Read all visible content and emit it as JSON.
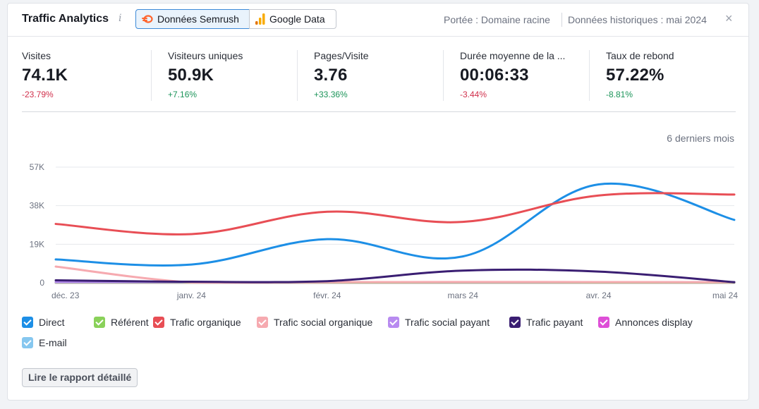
{
  "header": {
    "title": "Traffic Analytics",
    "info_symbol": "i",
    "source_tabs": [
      {
        "label": "Données Semrush",
        "icon": "semrush-flame-icon",
        "active": true
      },
      {
        "label": "Google Data",
        "icon": "google-analytics-bars-icon",
        "active": false
      }
    ],
    "scope": "Portée : Domaine racine",
    "history": "Données historiques : mai 2024",
    "close_symbol": "×"
  },
  "metrics": [
    {
      "label": "Visites",
      "value": "74.1K",
      "change": "-23.79%",
      "trend": "negative"
    },
    {
      "label": "Visiteurs uniques",
      "value": "50.9K",
      "change": "+7.16%",
      "trend": "positive"
    },
    {
      "label": "Pages/Visite",
      "value": "3.76",
      "change": "+33.36%",
      "trend": "positive"
    },
    {
      "label": "Durée moyenne de la ...",
      "value": "00:06:33",
      "change": "-3.44%",
      "trend": "negative"
    },
    {
      "label": "Taux de rebond",
      "value": "57.22%",
      "change": "-8.81%",
      "trend": "positive"
    }
  ],
  "period_label": "6 derniers mois",
  "chart_data": {
    "type": "line",
    "x": [
      "déc. 23",
      "janv. 24",
      "févr. 24",
      "mars 24",
      "avr. 24",
      "mai 24"
    ],
    "y_ticks": [
      "0",
      "19K",
      "38K",
      "57K"
    ],
    "ylim": [
      0,
      57000
    ],
    "grid": true,
    "series": [
      {
        "name": "Trafic organique",
        "color": "#e84e55",
        "values": [
          29000,
          24000,
          35000,
          30000,
          43000,
          43500
        ]
      },
      {
        "name": "Direct",
        "color": "#1d8fe6",
        "values": [
          11500,
          9000,
          21500,
          13000,
          48500,
          31000
        ]
      },
      {
        "name": "Trafic payant",
        "color": "#3a1e72",
        "values": [
          1200,
          500,
          800,
          6000,
          5500,
          300
        ]
      },
      {
        "name": "Trafic social organique",
        "color": "#f6aab0",
        "values": [
          8000,
          200,
          300,
          400,
          350,
          300
        ]
      },
      {
        "name": "Trafic social payant",
        "color": "#b88bf0",
        "values": [
          300,
          300,
          300,
          300,
          300,
          300
        ]
      },
      {
        "name": "Référent",
        "color": "#8ad15a",
        "values": [
          100,
          100,
          100,
          100,
          100,
          100
        ]
      },
      {
        "name": "Annonces display",
        "color": "#de4fd7",
        "values": [
          50,
          50,
          50,
          50,
          50,
          50
        ]
      },
      {
        "name": "E-mail",
        "color": "#86c7ef",
        "values": [
          200,
          200,
          200,
          200,
          200,
          200
        ]
      }
    ]
  },
  "legend": [
    {
      "name": "Direct",
      "color": "#1d8fe6"
    },
    {
      "name": "Référent",
      "color": "#8ad15a"
    },
    {
      "name": "Trafic organique",
      "color": "#e84e55"
    },
    {
      "name": "Trafic social organique",
      "color": "#f6aab0"
    },
    {
      "name": "Trafic social payant",
      "color": "#b88bf0"
    },
    {
      "name": "Trafic payant",
      "color": "#3a1e72"
    },
    {
      "name": "Annonces display",
      "color": "#de4fd7"
    },
    {
      "name": "E-mail",
      "color": "#86c7ef"
    }
  ],
  "report_button": "Lire le rapport détaillé"
}
